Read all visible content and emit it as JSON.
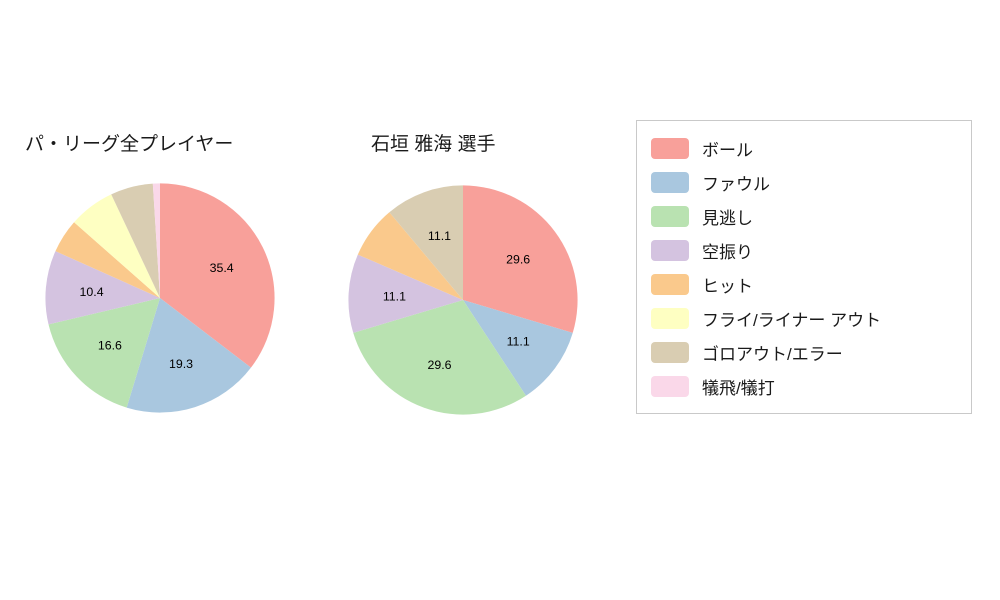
{
  "page": {
    "background_color": "#ffffff",
    "text_color": "#1a1a1a"
  },
  "legend": {
    "position": "right",
    "items": [
      {
        "name": "ball",
        "label": "ボール",
        "color": "#f8a09a"
      },
      {
        "name": "foul",
        "label": "ファウル",
        "color": "#a9c7df"
      },
      {
        "name": "minogashi",
        "label": "見逃し",
        "color": "#b9e2b1"
      },
      {
        "name": "karaburi",
        "label": "空振り",
        "color": "#d4c3e0"
      },
      {
        "name": "hit",
        "label": "ヒット",
        "color": "#fac98c"
      },
      {
        "name": "fly-liner",
        "label": "フライ/ライナー アウト",
        "color": "#feffc2"
      },
      {
        "name": "goro-error",
        "label": "ゴロアウト/エラー",
        "color": "#d9cdb2"
      },
      {
        "name": "sac",
        "label": "犠飛/犠打",
        "color": "#fad8e9"
      }
    ]
  },
  "chart_data": [
    {
      "type": "pie",
      "title": "パ・リーグ全プレイヤー",
      "unit": "percent",
      "start_angle_deg": -90,
      "direction": "clockwise",
      "slices": [
        {
          "name": "ball",
          "value": 35.4,
          "label": "35.4",
          "color": "#f8a09a"
        },
        {
          "name": "foul",
          "value": 19.3,
          "label": "19.3",
          "color": "#a9c7df"
        },
        {
          "name": "minogashi",
          "value": 16.6,
          "label": "16.6",
          "color": "#b9e2b1"
        },
        {
          "name": "karaburi",
          "value": 10.4,
          "label": "10.4",
          "color": "#d4c3e0"
        },
        {
          "name": "hit",
          "value": 4.8,
          "label": "",
          "color": "#fac98c"
        },
        {
          "name": "fly-liner",
          "value": 6.5,
          "label": "",
          "color": "#feffc2"
        },
        {
          "name": "goro-error",
          "value": 6.0,
          "label": "",
          "color": "#d9cdb2"
        },
        {
          "name": "sac",
          "value": 1.0,
          "label": "",
          "color": "#fad8e9"
        }
      ]
    },
    {
      "type": "pie",
      "title": "石垣 雅海  選手",
      "unit": "percent",
      "start_angle_deg": -90,
      "direction": "clockwise",
      "slices": [
        {
          "name": "ball",
          "value": 29.6,
          "label": "29.6",
          "color": "#f8a09a"
        },
        {
          "name": "foul",
          "value": 11.1,
          "label": "11.1",
          "color": "#a9c7df"
        },
        {
          "name": "minogashi",
          "value": 29.6,
          "label": "29.6",
          "color": "#b9e2b1"
        },
        {
          "name": "karaburi",
          "value": 11.1,
          "label": "11.1",
          "color": "#d4c3e0"
        },
        {
          "name": "hit",
          "value": 7.4,
          "label": "",
          "color": "#fac98c"
        },
        {
          "name": "goro-error",
          "value": 11.1,
          "label": "11.1",
          "color": "#d9cdb2"
        }
      ]
    }
  ]
}
